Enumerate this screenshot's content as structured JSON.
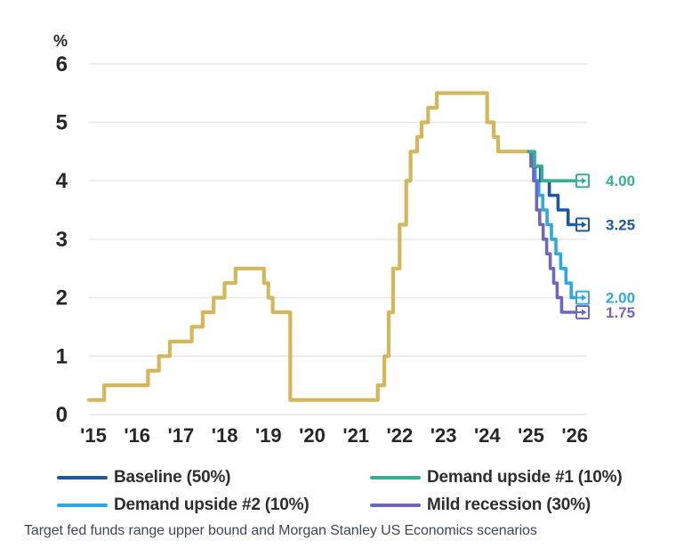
{
  "caption": "Target fed funds range upper bound and Morgan Stanley US Economics scenarios",
  "chart_data": {
    "type": "line",
    "unit_label": "%",
    "ylim": [
      0,
      6
    ],
    "yticks": [
      0,
      1,
      2,
      3,
      4,
      5,
      6
    ],
    "x_tick_labels": [
      "'15",
      "'16",
      "'17",
      "'18",
      "'19",
      "'20",
      "'21",
      "'22",
      "'23",
      "'24",
      "'25",
      "'26"
    ],
    "grid": true,
    "legend_position": "bottom",
    "series": [
      {
        "name": "Target fed funds range upper bound (history)",
        "color": "#d3b75b",
        "end_label": null,
        "points": [
          [
            2015.6,
            0.25
          ],
          [
            2015.95,
            0.5
          ],
          [
            2016.95,
            0.75
          ],
          [
            2017.2,
            1.0
          ],
          [
            2017.45,
            1.25
          ],
          [
            2017.95,
            1.5
          ],
          [
            2018.2,
            1.75
          ],
          [
            2018.45,
            2.0
          ],
          [
            2018.7,
            2.25
          ],
          [
            2018.95,
            2.5
          ],
          [
            2019.6,
            2.25
          ],
          [
            2019.7,
            2.0
          ],
          [
            2019.8,
            1.75
          ],
          [
            2020.2,
            0.25
          ],
          [
            2022.2,
            0.5
          ],
          [
            2022.35,
            1.0
          ],
          [
            2022.45,
            1.75
          ],
          [
            2022.55,
            2.5
          ],
          [
            2022.7,
            3.25
          ],
          [
            2022.85,
            4.0
          ],
          [
            2022.95,
            4.5
          ],
          [
            2023.1,
            4.75
          ],
          [
            2023.2,
            5.0
          ],
          [
            2023.35,
            5.25
          ],
          [
            2023.55,
            5.5
          ],
          [
            2024.7,
            5.0
          ],
          [
            2024.85,
            4.75
          ],
          [
            2024.95,
            4.5
          ],
          [
            2025.65,
            4.5
          ]
        ]
      },
      {
        "name": "Demand upside #2 (10%)",
        "color": "#2fa8e1",
        "end_label": "2.00",
        "points": [
          [
            2025.65,
            4.5
          ],
          [
            2025.72,
            4.25
          ],
          [
            2025.8,
            4.0
          ],
          [
            2025.88,
            3.75
          ],
          [
            2025.97,
            3.5
          ],
          [
            2026.07,
            3.25
          ],
          [
            2026.17,
            3.0
          ],
          [
            2026.27,
            2.75
          ],
          [
            2026.38,
            2.5
          ],
          [
            2026.5,
            2.25
          ],
          [
            2026.62,
            2.0
          ],
          [
            2026.9,
            2.0
          ]
        ]
      },
      {
        "name": "Mild recession (30%)",
        "color": "#6f66be",
        "end_label": "1.75",
        "points": [
          [
            2025.65,
            4.5
          ],
          [
            2025.7,
            4.25
          ],
          [
            2025.76,
            4.0
          ],
          [
            2025.83,
            3.5
          ],
          [
            2025.9,
            3.25
          ],
          [
            2025.98,
            3.0
          ],
          [
            2026.06,
            2.75
          ],
          [
            2026.14,
            2.5
          ],
          [
            2026.22,
            2.25
          ],
          [
            2026.3,
            2.0
          ],
          [
            2026.4,
            1.75
          ],
          [
            2026.9,
            1.75
          ]
        ]
      },
      {
        "name": "Baseline (50%)",
        "color": "#1f57a4",
        "end_label": "3.25",
        "points": [
          [
            2025.65,
            4.5
          ],
          [
            2025.78,
            4.25
          ],
          [
            2025.92,
            4.0
          ],
          [
            2026.12,
            3.75
          ],
          [
            2026.32,
            3.5
          ],
          [
            2026.55,
            3.25
          ],
          [
            2026.9,
            3.25
          ]
        ]
      },
      {
        "name": "Demand upside #1 (10%)",
        "color": "#35b093",
        "end_label": "4.00",
        "points": [
          [
            2025.65,
            4.5
          ],
          [
            2025.78,
            4.25
          ],
          [
            2025.95,
            4.0
          ],
          [
            2026.9,
            4.0
          ]
        ]
      }
    ]
  },
  "legend": {
    "items": [
      {
        "label": "Baseline (50%)",
        "color": "#1f57a4"
      },
      {
        "label": "Demand upside #1 (10%)",
        "color": "#35b093"
      },
      {
        "label": "Demand upside #2 (10%)",
        "color": "#2fa8e1"
      },
      {
        "label": "Mild recession (30%)",
        "color": "#6f66be"
      }
    ]
  }
}
